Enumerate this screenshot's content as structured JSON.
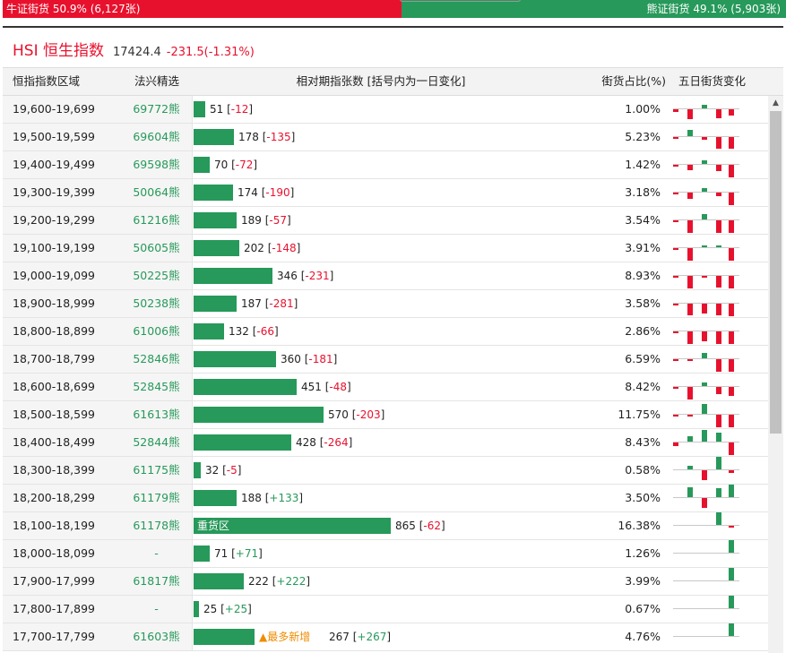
{
  "ratio": {
    "bull_label": "牛证街货 50.9% (6,127张)",
    "bear_label": "熊证街货 49.1% (5,903张)",
    "bull_pct": 50.9,
    "bull_color": "#e8112d",
    "bear_color": "#27995a"
  },
  "title": {
    "name": "HSI 恒生指数",
    "price": "17424.4",
    "change": "-231.5(-1.31%)"
  },
  "table": {
    "headers": [
      "恒指指数区域",
      "法兴精选",
      "相对期指张数 [括号内为一日变化]",
      "街货占比(%)",
      "五日街货变化"
    ],
    "rows": [
      {
        "range": "19,600-19,699",
        "code": "69772熊",
        "count": "51",
        "delta": "-12",
        "pct": "1.00%",
        "tag": "",
        "spark": [
          -0.2,
          -0.8,
          0.3,
          -0.7,
          -0.5
        ]
      },
      {
        "range": "19,500-19,599",
        "code": "69604熊",
        "count": "178",
        "delta": "-135",
        "pct": "5.23%",
        "tag": "",
        "spark": [
          -0.1,
          0.5,
          -0.2,
          -0.9,
          -0.9
        ]
      },
      {
        "range": "19,400-19,499",
        "code": "69598熊",
        "count": "70",
        "delta": "-72",
        "pct": "1.42%",
        "tag": "",
        "spark": [
          -0.1,
          -0.4,
          0.3,
          -0.5,
          -1.0
        ]
      },
      {
        "range": "19,300-19,399",
        "code": "50064熊",
        "count": "174",
        "delta": "-190",
        "pct": "3.18%",
        "tag": "",
        "spark": [
          -0.1,
          -0.5,
          0.3,
          -0.3,
          -1.0
        ]
      },
      {
        "range": "19,200-19,299",
        "code": "61216熊",
        "count": "189",
        "delta": "-57",
        "pct": "3.54%",
        "tag": "",
        "spark": [
          -0.1,
          -1.0,
          0.4,
          -1.0,
          -1.0
        ]
      },
      {
        "range": "19,100-19,199",
        "code": "50605熊",
        "count": "202",
        "delta": "-148",
        "pct": "3.91%",
        "tag": "",
        "spark": [
          -0.1,
          -1.0,
          0.1,
          0.1,
          -1.0
        ]
      },
      {
        "range": "19,000-19,099",
        "code": "50225熊",
        "count": "346",
        "delta": "-231",
        "pct": "8.93%",
        "tag": "",
        "spark": [
          -0.1,
          -1.0,
          -0.1,
          -0.9,
          -1.0
        ]
      },
      {
        "range": "18,900-18,999",
        "code": "50238熊",
        "count": "187",
        "delta": "-281",
        "pct": "3.58%",
        "tag": "",
        "spark": [
          -0.1,
          -0.9,
          -0.8,
          -0.9,
          -1.0
        ]
      },
      {
        "range": "18,800-18,899",
        "code": "61006熊",
        "count": "132",
        "delta": "-66",
        "pct": "2.86%",
        "tag": "",
        "spark": [
          -0.1,
          -1.0,
          -0.8,
          -1.0,
          -1.0
        ]
      },
      {
        "range": "18,700-18,799",
        "code": "52846熊",
        "count": "360",
        "delta": "-181",
        "pct": "6.59%",
        "tag": "",
        "spark": [
          -0.1,
          -0.1,
          0.4,
          -1.0,
          -1.0
        ]
      },
      {
        "range": "18,600-18,699",
        "code": "52845熊",
        "count": "451",
        "delta": "-48",
        "pct": "8.42%",
        "tag": "",
        "spark": [
          -0.1,
          -1.0,
          0.3,
          -0.6,
          -0.7
        ]
      },
      {
        "range": "18,500-18,599",
        "code": "61613熊",
        "count": "570",
        "delta": "-203",
        "pct": "11.75%",
        "tag": "",
        "spark": [
          -0.1,
          -0.1,
          0.8,
          -1.0,
          -1.0
        ]
      },
      {
        "range": "18,400-18,499",
        "code": "52844熊",
        "count": "428",
        "delta": "-264",
        "pct": "8.43%",
        "tag": "",
        "spark": [
          -0.3,
          0.4,
          0.9,
          0.7,
          -1.0
        ]
      },
      {
        "range": "18,300-18,399",
        "code": "61175熊",
        "count": "32",
        "delta": "-5",
        "pct": "0.58%",
        "tag": "",
        "spark": [
          0.0,
          0.3,
          -0.8,
          1.0,
          -0.2
        ]
      },
      {
        "range": "18,200-18,299",
        "code": "61179熊",
        "count": "188",
        "delta": "+133",
        "pct": "3.50%",
        "tag": "",
        "spark": [
          0.0,
          0.8,
          -0.8,
          0.7,
          1.0
        ]
      },
      {
        "range": "18,100-18,199",
        "code": "61178熊",
        "count": "865",
        "delta": "-62",
        "pct": "16.38%",
        "tag": "重货区",
        "spark": [
          0.0,
          0.0,
          0.0,
          1.0,
          -0.1
        ]
      },
      {
        "range": "18,000-18,099",
        "code": "-",
        "count": "71",
        "delta": "+71",
        "pct": "1.26%",
        "tag": "",
        "spark": [
          0.0,
          0.0,
          0.0,
          0.0,
          1.0
        ]
      },
      {
        "range": "17,900-17,999",
        "code": "61817熊",
        "count": "222",
        "delta": "+222",
        "pct": "3.99%",
        "tag": "",
        "spark": [
          0.0,
          0.0,
          0.0,
          0.0,
          1.0
        ]
      },
      {
        "range": "17,800-17,899",
        "code": "-",
        "count": "25",
        "delta": "+25",
        "pct": "0.67%",
        "tag": "",
        "spark": [
          0.0,
          0.0,
          0.0,
          0.0,
          1.0
        ]
      },
      {
        "range": "17,700-17,799",
        "code": "61603熊",
        "count": "267",
        "delta": "+267",
        "pct": "4.76%",
        "tag": "▲最多新增",
        "spark": [
          0.0,
          0.0,
          0.0,
          0.0,
          1.0
        ]
      }
    ]
  }
}
